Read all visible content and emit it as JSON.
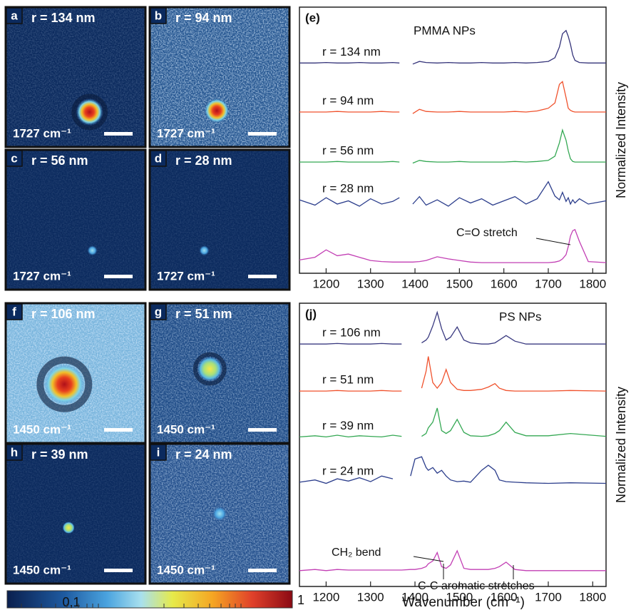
{
  "panels": [
    {
      "letter": "a",
      "radius_label": "r = 134 nm",
      "wavenumber": "1727 cm⁻¹"
    },
    {
      "letter": "b",
      "radius_label": "r = 94 nm",
      "wavenumber": "1727 cm⁻¹"
    },
    {
      "letter": "c",
      "radius_label": "r = 56 nm",
      "wavenumber": "1727 cm⁻¹"
    },
    {
      "letter": "d",
      "radius_label": "r = 28 nm",
      "wavenumber": "1727 cm⁻¹"
    },
    {
      "letter": "f",
      "radius_label": "r = 106 nm",
      "wavenumber": "1450 cm⁻¹"
    },
    {
      "letter": "g",
      "radius_label": "r = 51 nm",
      "wavenumber": "1450 cm⁻¹"
    },
    {
      "letter": "h",
      "radius_label": "r = 39 nm",
      "wavenumber": "1450 cm⁻¹"
    },
    {
      "letter": "i",
      "radius_label": "r = 24 nm",
      "wavenumber": "1450 cm⁻¹"
    }
  ],
  "colorbar": {
    "low_label": "0,1",
    "high_label": "1"
  },
  "chart_data": [
    {
      "type": "line",
      "label": "(e)",
      "title": "PMMA NPs",
      "ylabel": "Normalized Intensity",
      "xlim": [
        1140,
        1830
      ],
      "xticks": [
        1200,
        1300,
        1400,
        1500,
        1600,
        1700,
        1800
      ],
      "ylim": [
        0,
        5
      ],
      "x": [
        1140,
        1175,
        1200,
        1225,
        1250,
        1275,
        1300,
        1325,
        1350,
        1365,
        1380,
        1395,
        1410,
        1425,
        1450,
        1475,
        1500,
        1525,
        1550,
        1575,
        1600,
        1625,
        1650,
        1675,
        1700,
        1715,
        1725,
        1732,
        1740,
        1745,
        1750,
        1755,
        1760,
        1770,
        1790,
        1830
      ],
      "series": [
        {
          "name": "r = 134 nm",
          "color": "#35347a",
          "values": [
            3.95,
            3.95,
            3.96,
            3.95,
            3.95,
            3.96,
            3.95,
            3.95,
            3.96,
            3.95,
            null,
            3.93,
            3.98,
            3.96,
            3.95,
            3.96,
            3.95,
            3.95,
            3.96,
            3.95,
            3.95,
            3.96,
            3.95,
            3.96,
            3.98,
            4.05,
            4.25,
            4.5,
            4.56,
            4.45,
            4.3,
            4.1,
            4.0,
            3.96,
            3.95,
            3.95
          ]
        },
        {
          "name": "r = 94 nm",
          "color": "#f0522d",
          "values": [
            3.03,
            3.03,
            3.03,
            3.04,
            3.03,
            3.03,
            3.03,
            3.04,
            3.03,
            3.03,
            null,
            3.0,
            3.08,
            3.04,
            3.03,
            3.03,
            3.04,
            3.03,
            3.03,
            3.03,
            3.03,
            3.04,
            3.03,
            3.05,
            3.1,
            3.2,
            3.55,
            3.6,
            3.3,
            3.1,
            3.06,
            3.04,
            3.03,
            3.03,
            3.03,
            3.03
          ]
        },
        {
          "name": "r = 56 nm",
          "color": "#34a853",
          "values": [
            2.09,
            2.09,
            2.09,
            2.1,
            2.09,
            2.09,
            2.09,
            2.09,
            2.1,
            2.09,
            null,
            2.07,
            2.12,
            2.1,
            2.09,
            2.09,
            2.1,
            2.09,
            2.09,
            2.09,
            2.09,
            2.1,
            2.09,
            2.1,
            2.12,
            2.2,
            2.45,
            2.69,
            2.5,
            2.3,
            2.15,
            2.1,
            2.09,
            2.09,
            2.09,
            2.09
          ]
        },
        {
          "name": "r = 28 nm",
          "color": "#2c3e8c",
          "values": [
            1.38,
            1.28,
            1.42,
            1.3,
            1.36,
            1.26,
            1.4,
            1.3,
            1.35,
            1.42,
            null,
            1.3,
            1.44,
            1.28,
            1.38,
            1.26,
            1.42,
            1.32,
            1.4,
            1.28,
            1.36,
            1.44,
            1.3,
            1.4,
            1.72,
            1.45,
            1.38,
            1.52,
            1.35,
            1.42,
            1.3,
            1.38,
            1.32,
            1.4,
            1.3,
            1.36
          ]
        },
        {
          "color": "#c23fb4",
          "values": [
            0.25,
            0.3,
            0.44,
            0.33,
            0.36,
            0.3,
            0.24,
            0.22,
            0.21,
            0.21,
            0.21,
            0.21,
            0.22,
            0.24,
            0.31,
            0.27,
            0.24,
            0.21,
            0.2,
            0.2,
            0.2,
            0.2,
            0.2,
            0.2,
            0.2,
            0.21,
            0.23,
            0.27,
            0.35,
            0.5,
            0.7,
            0.8,
            0.82,
            0.6,
            0.22,
            0.2
          ]
        }
      ],
      "annotations": [
        {
          "text": "C=O stretch"
        }
      ]
    },
    {
      "type": "line",
      "label": "(j)",
      "title": "PS NPs",
      "xlabel": "Wavenumber (cm⁻¹)",
      "ylabel": "Normalized Intensity",
      "xlim": [
        1140,
        1830
      ],
      "xticks": [
        1200,
        1300,
        1400,
        1500,
        1600,
        1700,
        1800
      ],
      "ylim": [
        0,
        5
      ],
      "x": [
        1140,
        1175,
        1200,
        1225,
        1250,
        1275,
        1300,
        1325,
        1350,
        1370,
        1390,
        1400,
        1415,
        1425,
        1430,
        1440,
        1450,
        1460,
        1470,
        1480,
        1495,
        1510,
        1525,
        1550,
        1565,
        1580,
        1590,
        1605,
        1625,
        1650,
        1700,
        1750,
        1830
      ],
      "series": [
        {
          "name": "r = 106 nm",
          "color": "#3a3a80",
          "values": [
            4.28,
            4.28,
            4.28,
            4.29,
            4.28,
            4.28,
            4.28,
            4.29,
            4.28,
            4.28,
            null,
            null,
            4.3,
            4.35,
            4.4,
            4.6,
            4.84,
            4.55,
            4.35,
            4.4,
            4.58,
            4.35,
            4.3,
            4.28,
            4.28,
            4.3,
            4.35,
            4.43,
            4.33,
            4.28,
            4.28,
            4.28,
            4.28
          ]
        },
        {
          "name": "r = 51 nm",
          "color": "#f0522d",
          "values": [
            3.45,
            3.45,
            3.45,
            3.46,
            3.45,
            3.45,
            3.45,
            3.46,
            3.45,
            3.45,
            null,
            null,
            3.5,
            3.8,
            4.06,
            3.6,
            3.5,
            3.6,
            3.83,
            3.6,
            3.48,
            3.46,
            3.46,
            3.48,
            3.52,
            3.58,
            3.5,
            3.46,
            3.45,
            3.45,
            3.45,
            3.46,
            3.45
          ]
        },
        {
          "name": "r = 39 nm",
          "color": "#34a853",
          "values": [
            2.64,
            2.66,
            2.64,
            2.67,
            2.64,
            2.66,
            2.65,
            2.64,
            2.67,
            2.65,
            null,
            null,
            2.65,
            2.7,
            2.8,
            2.9,
            3.15,
            2.75,
            2.7,
            2.75,
            2.95,
            2.72,
            2.66,
            2.65,
            2.66,
            2.7,
            2.75,
            2.9,
            2.72,
            2.66,
            2.66,
            2.7,
            2.65
          ]
        },
        {
          "name": "r = 24 nm",
          "color": "#2c3e8c",
          "values": [
            1.84,
            1.88,
            1.82,
            1.9,
            1.86,
            1.92,
            1.85,
            1.95,
            1.9,
            null,
            1.95,
            2.25,
            2.29,
            2.1,
            2.05,
            2.1,
            2.0,
            2.05,
            1.95,
            1.88,
            1.85,
            1.86,
            1.84,
            2.05,
            2.14,
            2.05,
            1.88,
            1.85,
            1.84,
            1.83,
            1.82,
            1.83,
            1.82
          ]
        },
        {
          "color": "#c23fb4",
          "values": [
            0.28,
            0.3,
            0.28,
            0.3,
            0.29,
            0.29,
            0.29,
            0.29,
            0.29,
            0.29,
            0.3,
            0.3,
            0.32,
            0.35,
            0.4,
            0.45,
            0.6,
            0.35,
            0.32,
            0.38,
            0.63,
            0.32,
            0.3,
            0.3,
            0.3,
            0.32,
            0.35,
            0.43,
            0.3,
            0.28,
            0.28,
            0.28,
            0.28
          ]
        }
      ],
      "annotations": [
        {
          "text": "CH₂ bend"
        },
        {
          "text": "C-C aromatic stretches"
        }
      ]
    }
  ]
}
